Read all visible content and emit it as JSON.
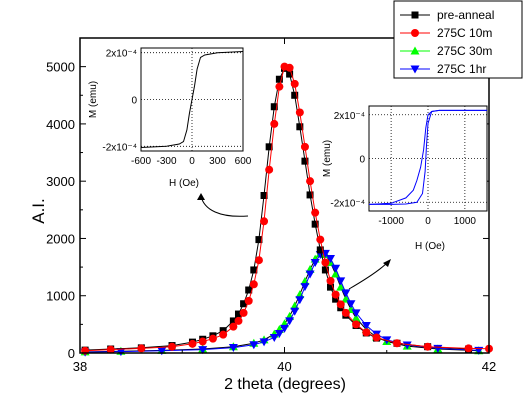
{
  "chart_data": [
    {
      "type": "scatter",
      "title": "",
      "xlabel": "2 theta (degrees)",
      "ylabel": "A.I.",
      "xlim": [
        38,
        42
      ],
      "ylim": [
        0,
        5500
      ],
      "xticks": [
        38,
        40,
        42
      ],
      "yticks": [
        0,
        1000,
        2000,
        3000,
        4000,
        5000
      ],
      "grid": false,
      "legend_position": "top-right, outside",
      "series": [
        {
          "name": "pre-anneal",
          "marker": "square",
          "color": "#000000",
          "line": true,
          "x": [
            38.05,
            38.3,
            38.6,
            38.9,
            39.1,
            39.2,
            39.3,
            39.4,
            39.5,
            39.55,
            39.6,
            39.65,
            39.7,
            39.75,
            39.8,
            39.85,
            39.9,
            39.95,
            40.0,
            40.05,
            40.1,
            40.15,
            40.2,
            40.25,
            40.3,
            40.35,
            40.4,
            40.45,
            40.5,
            40.55,
            40.6,
            40.7,
            40.8,
            40.9,
            41.1,
            41.4,
            41.8
          ],
          "y": [
            50,
            70,
            90,
            130,
            190,
            240,
            300,
            390,
            560,
            680,
            860,
            1100,
            1450,
            1980,
            2750,
            3600,
            4300,
            4780,
            4970,
            4870,
            4500,
            3950,
            3350,
            2760,
            2250,
            1800,
            1450,
            1150,
            940,
            790,
            660,
            480,
            350,
            260,
            170,
            110,
            70
          ]
        },
        {
          "name": "275C 10m",
          "marker": "circle",
          "color": "#ff0000",
          "line": true,
          "x": [
            38.05,
            38.3,
            38.6,
            38.9,
            39.1,
            39.2,
            39.3,
            39.4,
            39.5,
            39.55,
            39.6,
            39.65,
            39.7,
            39.75,
            39.8,
            39.85,
            39.9,
            39.95,
            40.0,
            40.05,
            40.1,
            40.15,
            40.2,
            40.25,
            40.3,
            40.35,
            40.4,
            40.45,
            40.5,
            40.55,
            40.6,
            40.7,
            40.8,
            40.9,
            41.1,
            41.4,
            41.8,
            42.0
          ],
          "y": [
            40,
            60,
            80,
            110,
            160,
            200,
            250,
            320,
            460,
            560,
            700,
            910,
            1200,
            1620,
            2300,
            3200,
            4000,
            4650,
            5000,
            4980,
            4700,
            4200,
            3600,
            3000,
            2450,
            1980,
            1580,
            1260,
            1020,
            850,
            700,
            500,
            360,
            270,
            170,
            110,
            80,
            75
          ]
        },
        {
          "name": "275C 30m",
          "marker": "triangle-up",
          "color": "#00ff00",
          "line": true,
          "x": [
            38.05,
            38.4,
            38.8,
            39.2,
            39.5,
            39.7,
            39.8,
            39.9,
            39.95,
            40.0,
            40.05,
            40.1,
            40.15,
            40.2,
            40.25,
            40.3,
            40.35,
            40.4,
            40.45,
            40.5,
            40.55,
            40.6,
            40.65,
            40.7,
            40.8,
            40.9,
            41.0,
            41.2,
            41.5,
            41.9
          ],
          "y": [
            20,
            30,
            45,
            70,
            110,
            170,
            230,
            330,
            410,
            510,
            640,
            820,
            1020,
            1250,
            1460,
            1640,
            1740,
            1720,
            1580,
            1380,
            1150,
            940,
            760,
            610,
            410,
            280,
            200,
            120,
            70,
            40
          ]
        },
        {
          "name": "275C 1hr",
          "marker": "triangle-down",
          "color": "#0000ff",
          "line": true,
          "x": [
            38.05,
            38.4,
            38.8,
            39.2,
            39.5,
            39.7,
            39.8,
            39.9,
            39.95,
            40.0,
            40.05,
            40.1,
            40.15,
            40.2,
            40.25,
            40.3,
            40.35,
            40.4,
            40.45,
            40.5,
            40.55,
            40.6,
            40.65,
            40.7,
            40.8,
            40.9,
            41.0,
            41.2,
            41.5,
            41.9
          ],
          "y": [
            15,
            25,
            40,
            60,
            95,
            145,
            195,
            270,
            340,
            430,
            560,
            730,
            930,
            1160,
            1380,
            1580,
            1720,
            1740,
            1650,
            1480,
            1260,
            1050,
            860,
            700,
            480,
            330,
            230,
            140,
            80,
            45
          ]
        }
      ]
    },
    {
      "type": "line",
      "inset": "left",
      "xlabel": "H (Oe)",
      "ylabel": "M (emu)",
      "xlim": [
        -600,
        600
      ],
      "ylim": [
        -0.00022,
        0.00022
      ],
      "xtick_labels": [
        "-600",
        "-300",
        "0",
        "300",
        "600"
      ],
      "ytick_labels": [
        "2x10⁻⁴",
        "0",
        "-2x10⁻⁴"
      ],
      "grid": true,
      "series": [
        {
          "color": "#000000",
          "x": [
            -600,
            -300,
            -150,
            -100,
            -60,
            -30,
            0,
            30,
            60,
            100,
            150,
            300,
            600
          ],
          "y": [
            -0.000205,
            -0.0002,
            -0.00019,
            -0.00018,
            -0.00013,
            -6e-05,
            0,
            6e-05,
            0.00013,
            0.00018,
            0.00019,
            0.0002,
            0.000205
          ]
        }
      ]
    },
    {
      "type": "line",
      "inset": "right",
      "xlabel": "H (Oe)",
      "ylabel": "M (emu)",
      "xlim": [
        -1600,
        1600
      ],
      "ylim": [
        -0.00024,
        0.00024
      ],
      "xtick_labels": [
        "-1000",
        "0",
        "1000"
      ],
      "ytick_labels": [
        "2x10⁻⁴",
        "0",
        "-2x10⁻⁴"
      ],
      "grid": true,
      "series": [
        {
          "color": "#0000ff",
          "branch": "ascending",
          "x": [
            -1600,
            -1000,
            -600,
            -400,
            -300,
            -200,
            -120,
            -60,
            0,
            100,
            300,
            1600
          ],
          "y": [
            -0.00021,
            -0.000205,
            -0.00018,
            -0.000145,
            -0.0001,
            -4e-05,
            4e-05,
            0.00014,
            0.0002,
            0.000215,
            0.00022,
            0.00022
          ]
        },
        {
          "color": "#0000ff",
          "branch": "descending",
          "x": [
            1600,
            300,
            100,
            0,
            -40,
            -80,
            -150,
            -300,
            -600,
            -1000,
            -1600
          ],
          "y": [
            0.00022,
            0.00022,
            0.000215,
            0.00016,
            6e-05,
            -6e-05,
            -0.00016,
            -0.0002,
            -0.000208,
            -0.00021,
            -0.00021
          ]
        }
      ]
    }
  ]
}
